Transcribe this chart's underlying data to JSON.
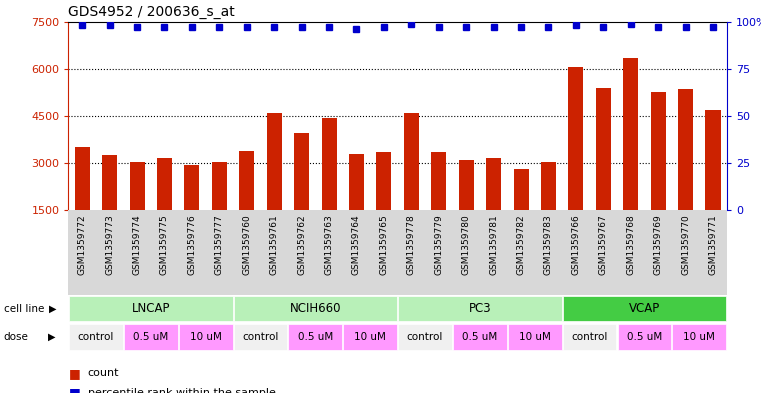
{
  "title": "GDS4952 / 200636_s_at",
  "samples": [
    "GSM1359772",
    "GSM1359773",
    "GSM1359774",
    "GSM1359775",
    "GSM1359776",
    "GSM1359777",
    "GSM1359760",
    "GSM1359761",
    "GSM1359762",
    "GSM1359763",
    "GSM1359764",
    "GSM1359765",
    "GSM1359778",
    "GSM1359779",
    "GSM1359780",
    "GSM1359781",
    "GSM1359782",
    "GSM1359783",
    "GSM1359766",
    "GSM1359767",
    "GSM1359768",
    "GSM1359769",
    "GSM1359770",
    "GSM1359771"
  ],
  "counts": [
    3500,
    3250,
    3050,
    3150,
    2950,
    3050,
    3400,
    4600,
    3950,
    4450,
    3300,
    3350,
    4600,
    3350,
    3100,
    3150,
    2800,
    3050,
    6050,
    5400,
    6350,
    5250,
    5350,
    4700
  ],
  "percentile_ranks": [
    98,
    98,
    97,
    97,
    97,
    97,
    97,
    97,
    97,
    97,
    96,
    97,
    99,
    97,
    97,
    97,
    97,
    97,
    98,
    97,
    99,
    97,
    97,
    97
  ],
  "cell_lines": [
    "LNCAP",
    "NCIH660",
    "PC3",
    "VCAP"
  ],
  "cell_line_spans": [
    6,
    6,
    6,
    6
  ],
  "cell_line_colors": [
    "#b8f0b8",
    "#b8f0b8",
    "#b8f0b8",
    "#44cc44"
  ],
  "dose_labels": [
    "control",
    "0.5 uM",
    "10 uM",
    "control",
    "0.5 uM",
    "10 uM",
    "control",
    "0.5 uM",
    "10 uM",
    "control",
    "0.5 uM",
    "10 uM"
  ],
  "dose_spans": [
    2,
    2,
    2,
    2,
    2,
    2,
    2,
    2,
    2,
    2,
    2,
    2
  ],
  "dose_colors": [
    "#f0f0f0",
    "#ff99ff",
    "#ff99ff",
    "#f0f0f0",
    "#ff99ff",
    "#ff99ff",
    "#f0f0f0",
    "#ff99ff",
    "#ff99ff",
    "#f0f0f0",
    "#ff99ff",
    "#ff99ff"
  ],
  "bar_color": "#CC2200",
  "dot_color": "#0000CC",
  "ylim_left": [
    1500,
    7500
  ],
  "ylim_right": [
    0,
    100
  ],
  "yticks_left": [
    1500,
    3000,
    4500,
    6000,
    7500
  ],
  "yticks_right": [
    0,
    25,
    50,
    75,
    100
  ],
  "gridlines": [
    3000,
    4500,
    6000
  ],
  "bg_color": "#ffffff",
  "axis_color_left": "#CC2200",
  "axis_color_right": "#0000CC",
  "sample_label_bg": "#d8d8d8",
  "xticklabel_fontsize": 6.5,
  "bar_width": 0.55
}
